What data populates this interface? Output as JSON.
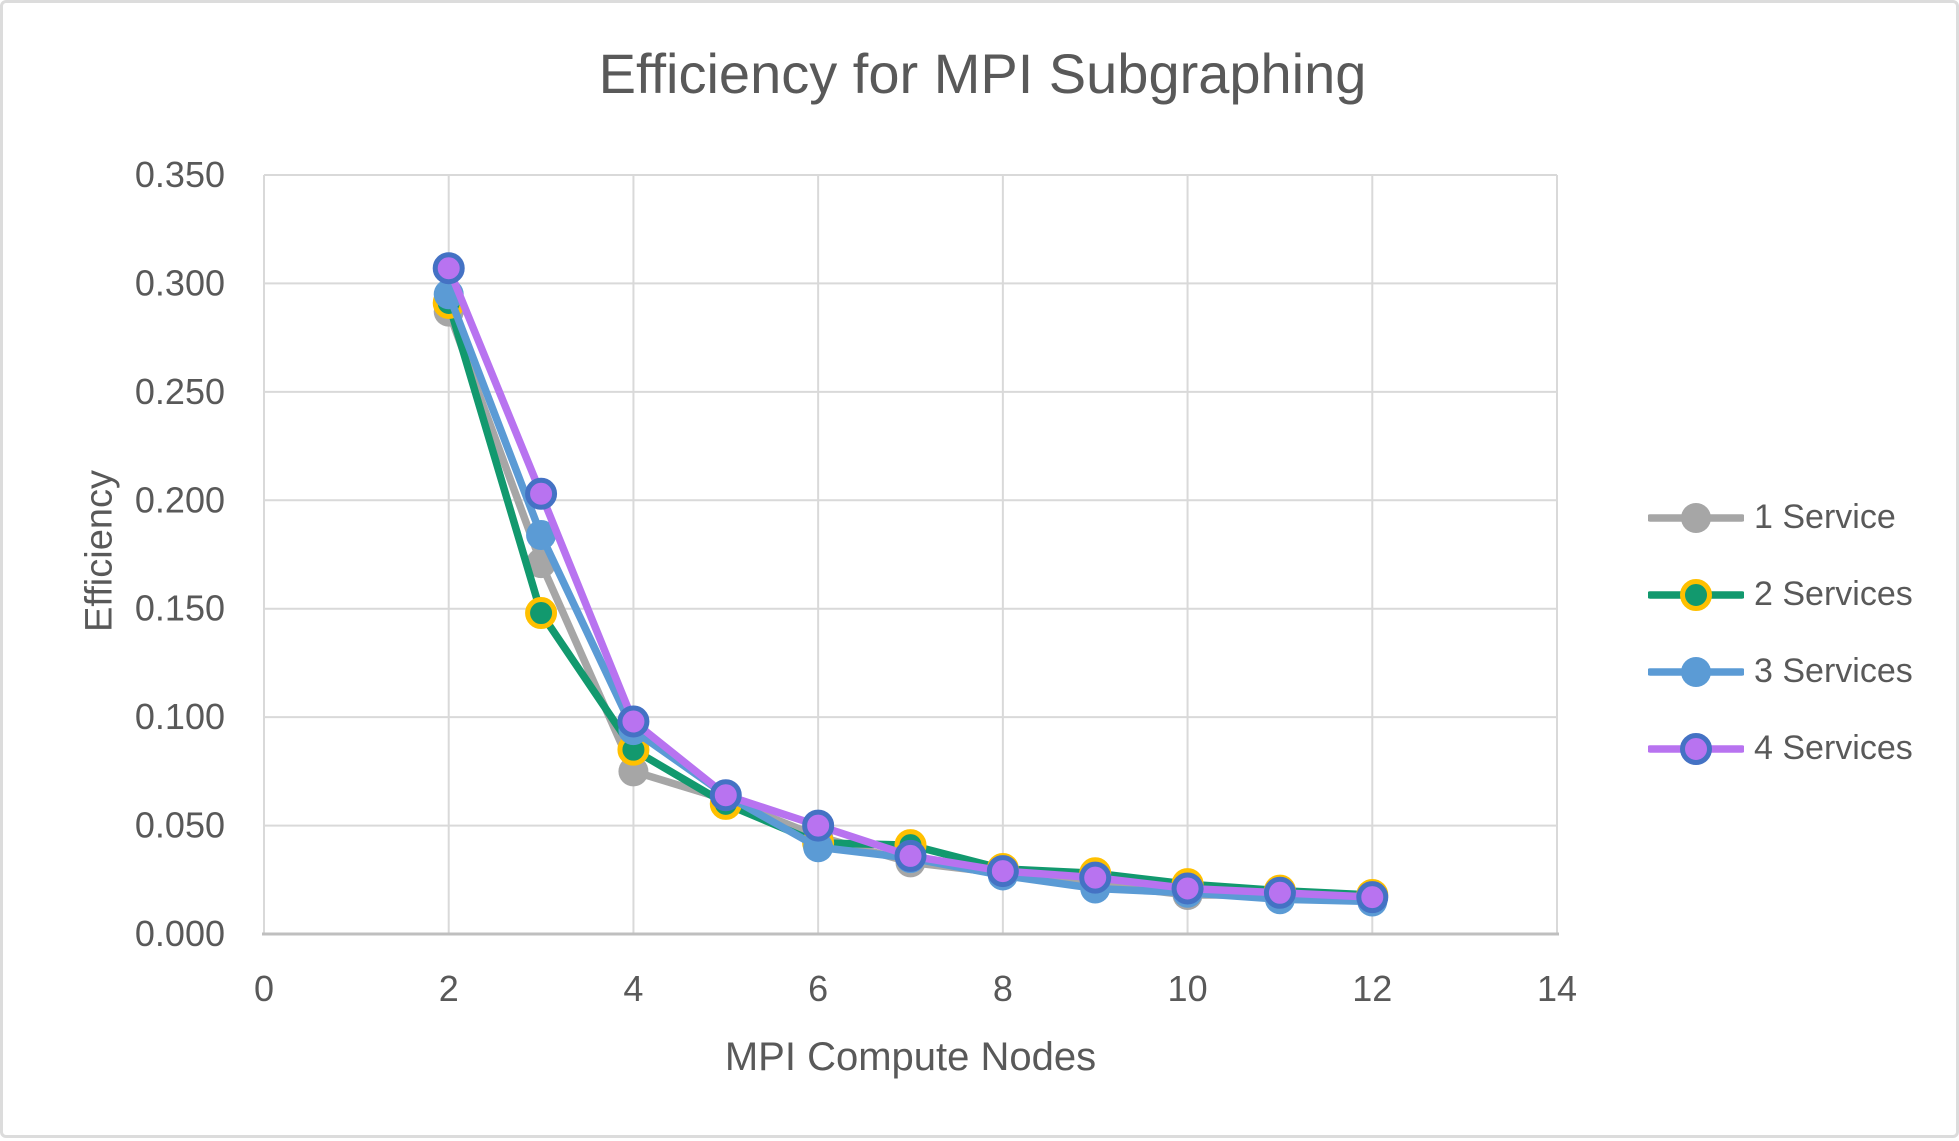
{
  "chart_data": {
    "type": "line",
    "title": "Efficiency for MPI Subgraphing",
    "xlabel": "MPI Compute Nodes",
    "ylabel": "Efficiency",
    "x": [
      2,
      3,
      4,
      5,
      6,
      7,
      8,
      9,
      10,
      11,
      12
    ],
    "series": [
      {
        "name": "1 Service",
        "line_color": "#A6A6A6",
        "marker_fill": "#A6A6A6",
        "marker_ring": null,
        "values": [
          0.287,
          0.171,
          0.075,
          0.062,
          0.045,
          0.033,
          0.028,
          0.023,
          0.018,
          0.018,
          0.016
        ]
      },
      {
        "name": "2 Services",
        "line_color": "#12996E",
        "marker_fill": "#12996E",
        "marker_ring": "#FFC000",
        "values": [
          0.291,
          0.148,
          0.085,
          0.06,
          0.042,
          0.041,
          0.03,
          0.028,
          0.023,
          0.02,
          0.018
        ]
      },
      {
        "name": "3 Services",
        "line_color": "#5B9BD5",
        "marker_fill": "#5B9BD5",
        "marker_ring": null,
        "values": [
          0.295,
          0.184,
          0.094,
          0.064,
          0.04,
          0.035,
          0.027,
          0.021,
          0.019,
          0.016,
          0.015
        ]
      },
      {
        "name": "4 Services",
        "line_color": "#B873F0",
        "marker_fill": "#B873F0",
        "marker_ring": "#4472C4",
        "values": [
          0.307,
          0.203,
          0.098,
          0.064,
          0.05,
          0.036,
          0.029,
          0.026,
          0.021,
          0.019,
          0.017
        ]
      }
    ],
    "xlim": [
      0,
      14
    ],
    "ylim": [
      0,
      0.35
    ],
    "x_ticks": [
      "0",
      "2",
      "4",
      "6",
      "8",
      "10",
      "12",
      "14"
    ],
    "y_ticks": [
      "0.000",
      "0.050",
      "0.100",
      "0.150",
      "0.200",
      "0.250",
      "0.300",
      "0.350"
    ],
    "grid": true,
    "legend_position": "right"
  },
  "palette": {
    "text": "#595959",
    "gridline": "#D9D9D9",
    "axis_line": "#BFBFBF",
    "background": "#FFFFFF",
    "frame_border": "#DCDCDC"
  }
}
